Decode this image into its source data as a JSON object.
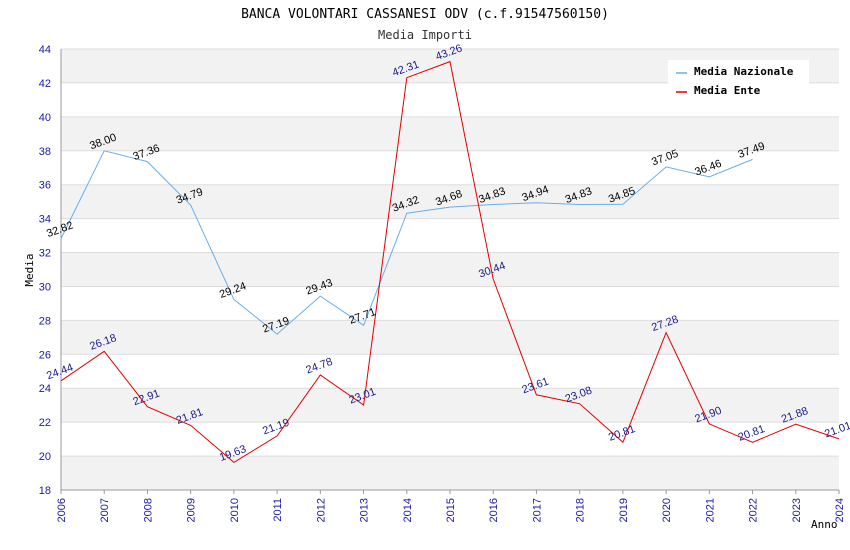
{
  "chart_data": {
    "type": "line",
    "title": "BANCA VOLONTARI CASSANESI ODV (c.f.91547560150)",
    "subtitle": "Media Importi",
    "xlabel": "Anno",
    "ylabel": "Media",
    "ylim": [
      18,
      44
    ],
    "yticks": [
      18,
      20,
      22,
      24,
      26,
      28,
      30,
      32,
      34,
      36,
      38,
      40,
      42,
      44
    ],
    "x": [
      "2006",
      "2007",
      "2008",
      "2009",
      "2010",
      "2011",
      "2012",
      "2013",
      "2014",
      "2015",
      "2016",
      "2017",
      "2018",
      "2019",
      "2020",
      "2021",
      "2022",
      "2023",
      "2024"
    ],
    "grid": true,
    "legend_position": "top-right",
    "series": [
      {
        "name": "Media Nazionale",
        "color": "#6aaee8",
        "values": [
          32.82,
          38.0,
          37.36,
          34.79,
          29.24,
          27.19,
          29.43,
          27.71,
          34.32,
          34.68,
          34.83,
          34.94,
          34.83,
          34.85,
          37.05,
          36.46,
          37.49,
          null,
          null
        ],
        "labels": [
          "32.82",
          "38.00",
          "37.36",
          "34.79",
          "29.24",
          "27.19",
          "29.43",
          "27.71",
          "34.32",
          "34.68",
          "34.83",
          "34.94",
          "34.83",
          "34.85",
          "37.05",
          "36.46",
          "37.49",
          null,
          null
        ]
      },
      {
        "name": "Media Ente",
        "color": "#e00000",
        "values": [
          24.44,
          26.18,
          22.91,
          21.81,
          19.63,
          21.19,
          24.78,
          23.01,
          42.31,
          43.26,
          30.44,
          23.61,
          23.08,
          20.81,
          27.28,
          21.9,
          20.81,
          21.88,
          21.01
        ],
        "labels": [
          "24.44",
          "26.18",
          "22.91",
          "21.81",
          "19.63",
          "21.19",
          "24.78",
          "23.01",
          "42.31",
          "43.26",
          "30.44",
          "23.61",
          "23.08",
          "20.81",
          "27.28",
          "21.90",
          "20.81",
          "21.88",
          "21.01"
        ]
      }
    ]
  }
}
